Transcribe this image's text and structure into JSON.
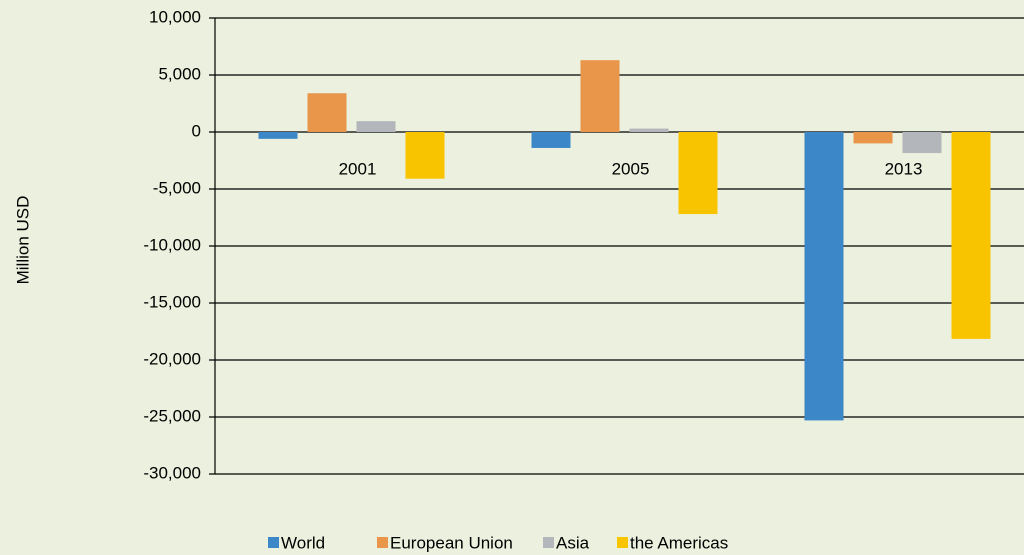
{
  "chart_data": {
    "type": "bar",
    "y_label": "Million USD",
    "categories": [
      "2001",
      "2005",
      "2013"
    ],
    "series": [
      {
        "name": "World",
        "color": "#3b87c8",
        "values": [
          -600,
          -1400,
          -25300
        ]
      },
      {
        "name": "European Union",
        "color": "#e9954a",
        "values": [
          3400,
          6300,
          -1000
        ]
      },
      {
        "name": "Asia",
        "color": "#b3b6ba",
        "values": [
          950,
          300,
          -1850
        ]
      },
      {
        "name": "the Americas",
        "color": "#f8c400",
        "values": [
          -4100,
          -7200,
          -18150
        ]
      }
    ],
    "ylim": [
      -30000,
      10000
    ],
    "yticks": [
      {
        "value": -30000,
        "label": "-30,000"
      },
      {
        "value": -25000,
        "label": "-25,000"
      },
      {
        "value": -20000,
        "label": "-20,000"
      },
      {
        "value": -15000,
        "label": "-15,000"
      },
      {
        "value": -10000,
        "label": "-10,000"
      },
      {
        "value": -5000,
        "label": "-5,000"
      },
      0,
      {
        "value": 5000,
        "label": "5,000"
      },
      {
        "value": 10000,
        "label": "10,000"
      }
    ],
    "grid": true,
    "legend": "bottom"
  }
}
